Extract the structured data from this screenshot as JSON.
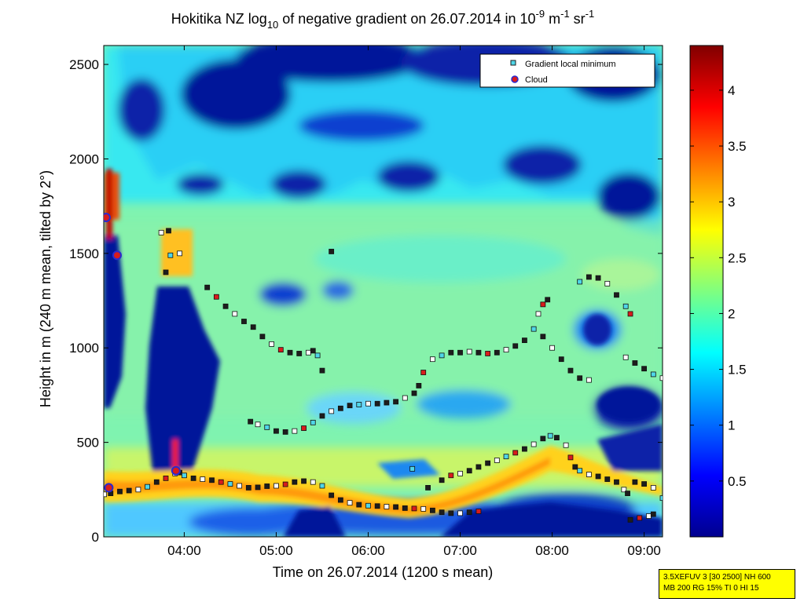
{
  "chart_data": {
    "type": "heatmap",
    "title": {
      "pre": "Hokitika NZ log",
      "sub": "10",
      "mid": " of negative gradient on 26.07.2014 in 10",
      "sup1": "-9",
      "mid2": " m",
      "sup2": "-1",
      "mid3": " sr",
      "sup3": "-1"
    },
    "xlabel": "Time on 26.07.2014 (1200 s mean)",
    "ylabel": "Height in m (240 m mean, tilted by 2°)",
    "xlim": [
      3.125,
      9.2
    ],
    "ylim": [
      0,
      2600
    ],
    "x_ticks": [
      {
        "v": 4,
        "label": "04:00"
      },
      {
        "v": 5,
        "label": "05:00"
      },
      {
        "v": 6,
        "label": "06:00"
      },
      {
        "v": 7,
        "label": "07:00"
      },
      {
        "v": 8,
        "label": "08:00"
      },
      {
        "v": 9,
        "label": "09:00"
      }
    ],
    "y_ticks": [
      {
        "v": 0,
        "label": "0"
      },
      {
        "v": 500,
        "label": "500"
      },
      {
        "v": 1000,
        "label": "1000"
      },
      {
        "v": 1500,
        "label": "1500"
      },
      {
        "v": 2000,
        "label": "2000"
      },
      {
        "v": 2500,
        "label": "2500"
      }
    ],
    "colorbar": {
      "range": [
        0,
        4.4
      ],
      "ticks": [
        {
          "v": 0.5,
          "label": "0.5"
        },
        {
          "v": 1,
          "label": "1"
        },
        {
          "v": 1.5,
          "label": "1.5"
        },
        {
          "v": 2,
          "label": "2"
        },
        {
          "v": 2.5,
          "label": "2.5"
        },
        {
          "v": 3,
          "label": "3"
        },
        {
          "v": 3.5,
          "label": "3.5"
        },
        {
          "v": 4,
          "label": "4"
        }
      ],
      "colormap": "jet"
    },
    "legend": {
      "position": "top-right",
      "items": [
        {
          "name": "Gradient local minimum",
          "marker": "square",
          "color": "#4fd6e8"
        },
        {
          "name": "Cloud",
          "marker": "circle",
          "color": "#d81c1c",
          "edge": "#2a2ad0"
        }
      ]
    },
    "series": [
      {
        "name": "Gradient local minimum",
        "points": [
          [
            3.13,
            225
          ],
          [
            3.2,
            230
          ],
          [
            3.3,
            240
          ],
          [
            3.4,
            245
          ],
          [
            3.5,
            250
          ],
          [
            3.6,
            265
          ],
          [
            3.7,
            290
          ],
          [
            3.8,
            310
          ],
          [
            3.9,
            335
          ],
          [
            3.95,
            340
          ],
          [
            4.0,
            325
          ],
          [
            4.1,
            310
          ],
          [
            4.2,
            305
          ],
          [
            4.3,
            300
          ],
          [
            4.4,
            290
          ],
          [
            4.5,
            280
          ],
          [
            4.6,
            270
          ],
          [
            4.7,
            260
          ],
          [
            4.8,
            262
          ],
          [
            4.9,
            268
          ],
          [
            5.0,
            270
          ],
          [
            5.1,
            278
          ],
          [
            5.2,
            290
          ],
          [
            5.3,
            295
          ],
          [
            5.4,
            290
          ],
          [
            5.5,
            270
          ],
          [
            5.6,
            220
          ],
          [
            5.7,
            195
          ],
          [
            5.8,
            180
          ],
          [
            5.9,
            170
          ],
          [
            6.0,
            165
          ],
          [
            6.1,
            163
          ],
          [
            6.2,
            160
          ],
          [
            6.3,
            158
          ],
          [
            6.4,
            152
          ],
          [
            6.5,
            150
          ],
          [
            6.6,
            148
          ],
          [
            6.7,
            140
          ],
          [
            6.8,
            130
          ],
          [
            6.9,
            125
          ],
          [
            7.0,
            125
          ],
          [
            7.1,
            130
          ],
          [
            7.2,
            135
          ],
          [
            4.72,
            610
          ],
          [
            4.8,
            595
          ],
          [
            4.9,
            580
          ],
          [
            5.0,
            560
          ],
          [
            5.1,
            555
          ],
          [
            5.2,
            560
          ],
          [
            5.3,
            575
          ],
          [
            5.4,
            605
          ],
          [
            5.5,
            640
          ],
          [
            5.6,
            665
          ],
          [
            5.7,
            680
          ],
          [
            5.8,
            695
          ],
          [
            5.9,
            700
          ],
          [
            6.0,
            705
          ],
          [
            6.1,
            705
          ],
          [
            6.2,
            710
          ],
          [
            6.3,
            715
          ],
          [
            6.4,
            735
          ],
          [
            6.5,
            760
          ],
          [
            6.55,
            800
          ],
          [
            6.6,
            870
          ],
          [
            6.7,
            940
          ],
          [
            6.8,
            960
          ],
          [
            6.9,
            975
          ],
          [
            7.0,
            975
          ],
          [
            7.1,
            980
          ],
          [
            7.2,
            975
          ],
          [
            7.3,
            970
          ],
          [
            7.4,
            975
          ],
          [
            7.5,
            990
          ],
          [
            7.6,
            1010
          ],
          [
            7.7,
            1040
          ],
          [
            7.8,
            1100
          ],
          [
            7.85,
            1180
          ],
          [
            7.9,
            1230
          ],
          [
            7.95,
            1255
          ],
          [
            7.9,
            1060
          ],
          [
            8.0,
            1000
          ],
          [
            8.1,
            940
          ],
          [
            8.2,
            880
          ],
          [
            8.3,
            840
          ],
          [
            8.4,
            830
          ],
          [
            8.3,
            1350
          ],
          [
            8.4,
            1375
          ],
          [
            8.5,
            1370
          ],
          [
            8.6,
            1340
          ],
          [
            8.7,
            1280
          ],
          [
            8.8,
            1220
          ],
          [
            8.85,
            1180
          ],
          [
            8.8,
            950
          ],
          [
            8.9,
            920
          ],
          [
            9.0,
            890
          ],
          [
            9.1,
            860
          ],
          [
            9.2,
            840
          ],
          [
            4.25,
            1320
          ],
          [
            4.35,
            1270
          ],
          [
            4.45,
            1220
          ],
          [
            4.55,
            1180
          ],
          [
            4.65,
            1140
          ],
          [
            4.75,
            1110
          ],
          [
            4.85,
            1060
          ],
          [
            4.95,
            1020
          ],
          [
            5.05,
            990
          ],
          [
            5.15,
            975
          ],
          [
            5.25,
            970
          ],
          [
            5.35,
            975
          ],
          [
            5.4,
            985
          ],
          [
            5.45,
            960
          ],
          [
            5.5,
            880
          ],
          [
            3.75,
            1610
          ],
          [
            3.83,
            1620
          ],
          [
            3.8,
            1400
          ],
          [
            3.85,
            1490
          ],
          [
            3.95,
            1500
          ],
          [
            6.65,
            260
          ],
          [
            6.8,
            300
          ],
          [
            6.9,
            325
          ],
          [
            7.0,
            335
          ],
          [
            7.1,
            350
          ],
          [
            7.2,
            370
          ],
          [
            7.3,
            390
          ],
          [
            7.4,
            405
          ],
          [
            7.5,
            425
          ],
          [
            7.6,
            445
          ],
          [
            7.7,
            465
          ],
          [
            7.8,
            490
          ],
          [
            7.9,
            520
          ],
          [
            7.98,
            535
          ],
          [
            8.05,
            525
          ],
          [
            8.15,
            485
          ],
          [
            8.2,
            420
          ],
          [
            8.25,
            370
          ],
          [
            8.3,
            350
          ],
          [
            8.4,
            330
          ],
          [
            8.5,
            320
          ],
          [
            8.6,
            305
          ],
          [
            8.7,
            290
          ],
          [
            8.78,
            250
          ],
          [
            8.82,
            230
          ],
          [
            8.9,
            290
          ],
          [
            9.0,
            280
          ],
          [
            9.1,
            260
          ],
          [
            9.2,
            205
          ],
          [
            8.85,
            90
          ],
          [
            8.95,
            100
          ],
          [
            9.05,
            110
          ],
          [
            9.1,
            120
          ],
          [
            6.48,
            360
          ],
          [
            5.6,
            1510
          ]
        ]
      },
      {
        "name": "Cloud",
        "points": [
          [
            3.15,
            1690
          ],
          [
            3.27,
            1490
          ],
          [
            3.18,
            260
          ],
          [
            3.91,
            350
          ]
        ]
      }
    ]
  },
  "infobox": {
    "line1": "3.5XEFUV 3 [30 2500] NH 600",
    "line2": "MB 200 RG 15% TI 0 HI 15"
  }
}
